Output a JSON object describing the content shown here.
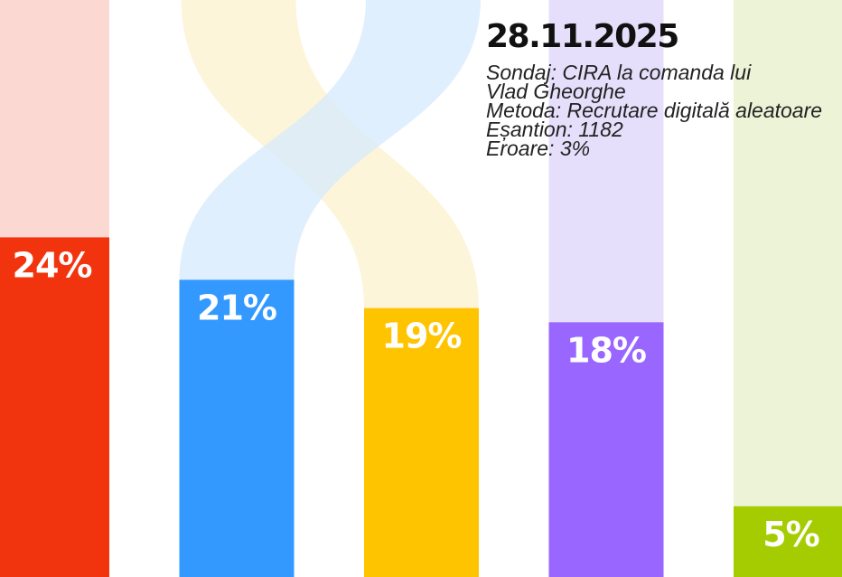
{
  "colors": {
    "red": "#f2340e",
    "blue": "#3399ff",
    "yellow": "#ffc400",
    "purple": "#9966ff",
    "green": "#a4cc00",
    "red_light": "#fbd9d2",
    "blue_light": "#d6eafc",
    "yellow_light": "#fcf1cc",
    "purple_light": "#e6dffb",
    "green_light": "#ecf3d6"
  },
  "info": {
    "date": "28.11.2025",
    "lines": [
      "Sondaj: CIRA la comanda lui",
      "Vlad Gheorghe",
      "Metoda: Recrutare digitală aleatoare",
      "Eșantion: 1182",
      "Eroare: 3%"
    ]
  },
  "chart_data": {
    "type": "bar",
    "series": [
      {
        "value": 24,
        "label": "24%",
        "color": "#f2340e"
      },
      {
        "value": 21,
        "label": "21%",
        "color": "#3399ff"
      },
      {
        "value": 19,
        "label": "19%",
        "color": "#ffc400"
      },
      {
        "value": 18,
        "label": "18%",
        "color": "#9966ff"
      },
      {
        "value": 5,
        "label": "5%",
        "color": "#a4cc00"
      }
    ],
    "transitions": [
      {
        "from_bar": 1,
        "to_bar": 2,
        "note": "ribbon"
      },
      {
        "from_bar": 2,
        "to_bar": 1,
        "note": "ribbon"
      }
    ],
    "ylim": [
      0,
      24
    ]
  }
}
